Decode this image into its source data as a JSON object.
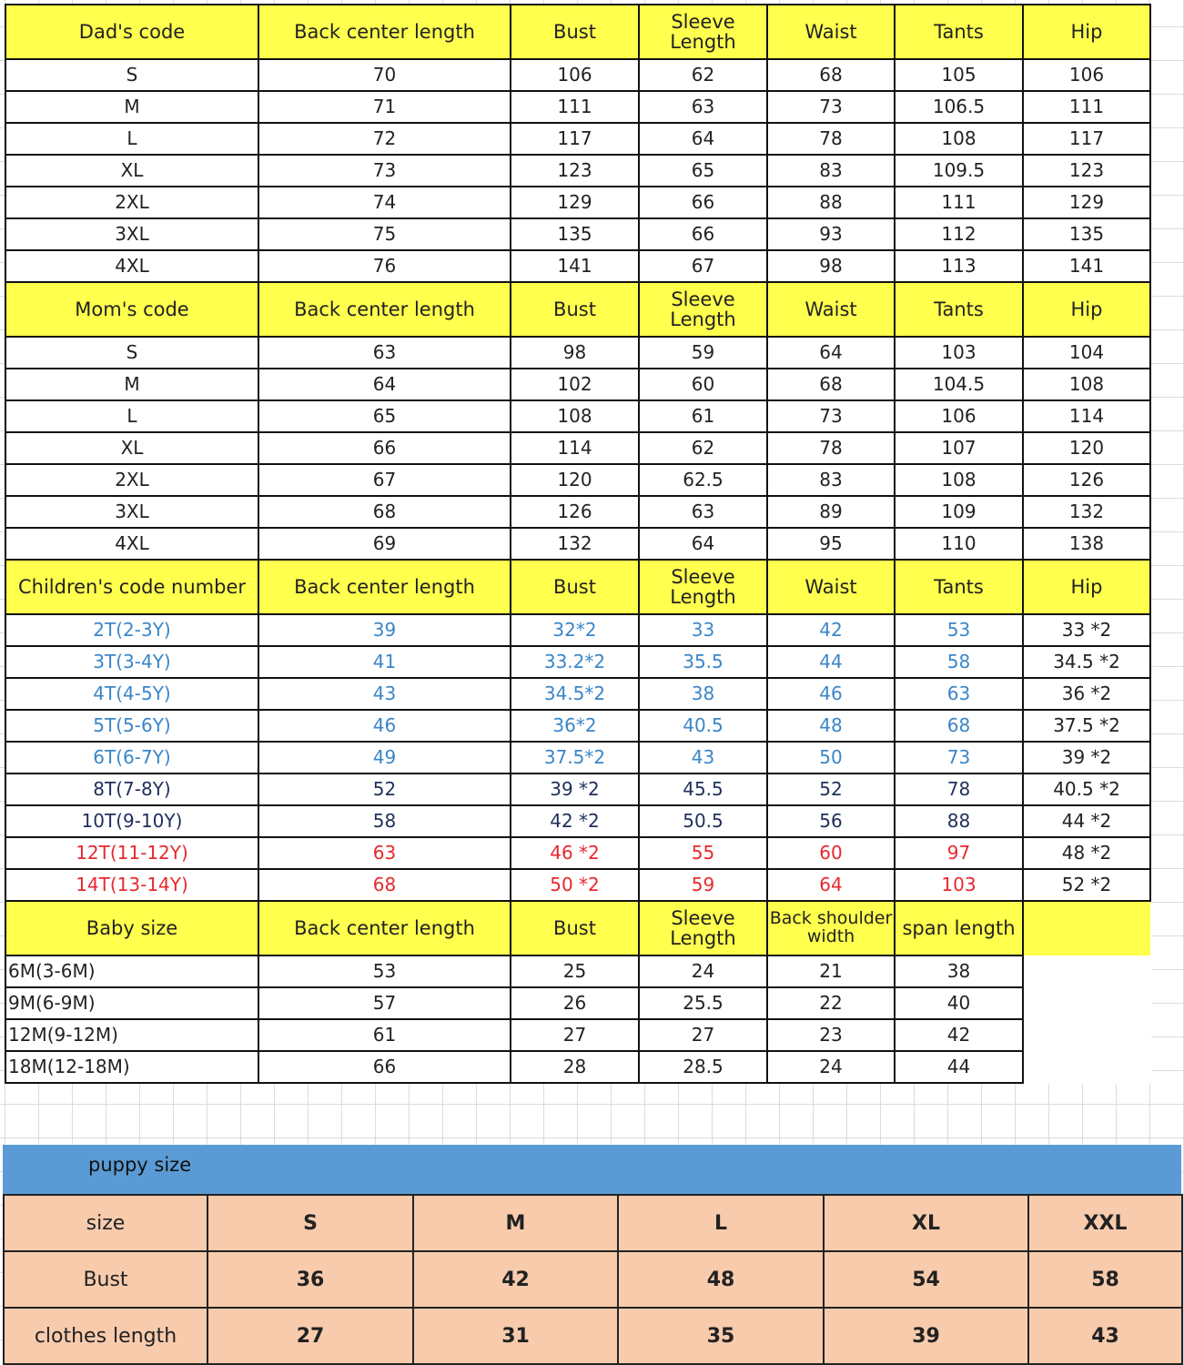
{
  "colors": {
    "header": "#ffff4d",
    "blue": "#3a86c8",
    "navy": "#1f2f5a",
    "red": "#e8282e",
    "band": "#5b9bd5",
    "puppy": "#f8cbad"
  },
  "sections": [
    {
      "header": [
        "Dad's code",
        "Back center length",
        "Bust",
        "Sleeve Length",
        "Waist",
        "Tants",
        "Hip"
      ],
      "rows": [
        [
          "S",
          "70",
          "106",
          "62",
          "68",
          "105",
          "106"
        ],
        [
          "M",
          "71",
          "111",
          "63",
          "73",
          "106.5",
          "111"
        ],
        [
          "L",
          "72",
          "117",
          "64",
          "78",
          "108",
          "117"
        ],
        [
          "XL",
          "73",
          "123",
          "65",
          "83",
          "109.5",
          "123"
        ],
        [
          "2XL",
          "74",
          "129",
          "66",
          "88",
          "111",
          "129"
        ],
        [
          "3XL",
          "75",
          "135",
          "66",
          "93",
          "112",
          "135"
        ],
        [
          "4XL",
          "76",
          "141",
          "67",
          "98",
          "113",
          "141"
        ]
      ]
    },
    {
      "header": [
        "Mom's code",
        "Back center length",
        "Bust",
        "Sleeve Length",
        "Waist",
        "Tants",
        "Hip"
      ],
      "rows": [
        [
          "S",
          "63",
          "98",
          "59",
          "64",
          "103",
          "104"
        ],
        [
          "M",
          "64",
          "102",
          "60",
          "68",
          "104.5",
          "108"
        ],
        [
          "L",
          "65",
          "108",
          "61",
          "73",
          "106",
          "114"
        ],
        [
          "XL",
          "66",
          "114",
          "62",
          "78",
          "107",
          "120"
        ],
        [
          "2XL",
          "67",
          "120",
          "62.5",
          "83",
          "108",
          "126"
        ],
        [
          "3XL",
          "68",
          "126",
          "63",
          "89",
          "109",
          "132"
        ],
        [
          "4XL",
          "69",
          "132",
          "64",
          "95",
          "110",
          "138"
        ]
      ]
    },
    {
      "header": [
        "Children's code number",
        "Back center length",
        "Bust",
        "Sleeve Length",
        "Waist",
        "Tants",
        "Hip"
      ],
      "row_colors": [
        "blue",
        "blue",
        "blue",
        "blue",
        "blue",
        "navy",
        "navy",
        "red",
        "red"
      ],
      "rows": [
        [
          "2T(2-3Y)",
          "39",
          "32*2",
          "33",
          "42",
          "53",
          "33 *2"
        ],
        [
          "3T(3-4Y)",
          "41",
          "33.2*2",
          "35.5",
          "44",
          "58",
          "34.5 *2"
        ],
        [
          "4T(4-5Y)",
          "43",
          "34.5*2",
          "38",
          "46",
          "63",
          "36 *2"
        ],
        [
          "5T(5-6Y)",
          "46",
          "36*2",
          "40.5",
          "48",
          "68",
          "37.5 *2"
        ],
        [
          "6T(6-7Y)",
          "49",
          "37.5*2",
          "43",
          "50",
          "73",
          "39 *2"
        ],
        [
          "8T(7-8Y)",
          "52",
          "39 *2",
          "45.5",
          "52",
          "78",
          "40.5 *2"
        ],
        [
          "10T(9-10Y)",
          "58",
          "42 *2",
          "50.5",
          "56",
          "88",
          "44 *2"
        ],
        [
          "12T(11-12Y)",
          "63",
          "46 *2",
          "55",
          "60",
          "97",
          "48 *2"
        ],
        [
          "14T(13-14Y)",
          "68",
          "50 *2",
          "59",
          "64",
          "103",
          "52 *2"
        ]
      ]
    },
    {
      "header": [
        "Baby size",
        "Back center length",
        "Bust",
        "Sleeve Length",
        "Back shoulder width",
        "span length"
      ],
      "rows": [
        [
          "6M(3-6M)",
          "53",
          "25",
          "24",
          "21",
          "38"
        ],
        [
          "9M(6-9M)",
          "57",
          "26",
          "25.5",
          "22",
          "40"
        ],
        [
          "12M(9-12M)",
          "61",
          "27",
          "27",
          "23",
          "42"
        ],
        [
          "18M(12-18M)",
          "66",
          "28",
          "28.5",
          "24",
          "44"
        ]
      ]
    }
  ],
  "puppy": {
    "title": "puppy size",
    "rows": [
      [
        "size",
        "S",
        "M",
        "L",
        "XL",
        "XXL"
      ],
      [
        "Bust",
        "36",
        "42",
        "48",
        "54",
        "58"
      ],
      [
        "clothes length",
        "27",
        "31",
        "35",
        "39",
        "43"
      ]
    ]
  }
}
